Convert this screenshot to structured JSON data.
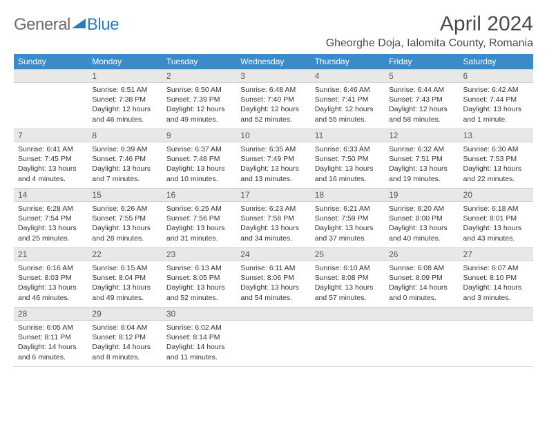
{
  "logo": {
    "text1": "General",
    "text2": "Blue",
    "icon_color": "#2b7bbf",
    "text1_color": "#6b6b6b",
    "text2_color": "#2b7bbf"
  },
  "title": "April 2024",
  "location": "Gheorghe Doja, Ialomita County, Romania",
  "colors": {
    "header_bg": "#3b8bc9",
    "header_fg": "#ffffff",
    "daynum_bg": "#e8e8e8",
    "border": "#d0d0d0",
    "text": "#333333"
  },
  "weekdays": [
    "Sunday",
    "Monday",
    "Tuesday",
    "Wednesday",
    "Thursday",
    "Friday",
    "Saturday"
  ],
  "start_offset": 1,
  "days": [
    {
      "n": 1,
      "sr": "6:51 AM",
      "ss": "7:38 PM",
      "dl": "12 hours and 46 minutes."
    },
    {
      "n": 2,
      "sr": "6:50 AM",
      "ss": "7:39 PM",
      "dl": "12 hours and 49 minutes."
    },
    {
      "n": 3,
      "sr": "6:48 AM",
      "ss": "7:40 PM",
      "dl": "12 hours and 52 minutes."
    },
    {
      "n": 4,
      "sr": "6:46 AM",
      "ss": "7:41 PM",
      "dl": "12 hours and 55 minutes."
    },
    {
      "n": 5,
      "sr": "6:44 AM",
      "ss": "7:43 PM",
      "dl": "12 hours and 58 minutes."
    },
    {
      "n": 6,
      "sr": "6:42 AM",
      "ss": "7:44 PM",
      "dl": "13 hours and 1 minute."
    },
    {
      "n": 7,
      "sr": "6:41 AM",
      "ss": "7:45 PM",
      "dl": "13 hours and 4 minutes."
    },
    {
      "n": 8,
      "sr": "6:39 AM",
      "ss": "7:46 PM",
      "dl": "13 hours and 7 minutes."
    },
    {
      "n": 9,
      "sr": "6:37 AM",
      "ss": "7:48 PM",
      "dl": "13 hours and 10 minutes."
    },
    {
      "n": 10,
      "sr": "6:35 AM",
      "ss": "7:49 PM",
      "dl": "13 hours and 13 minutes."
    },
    {
      "n": 11,
      "sr": "6:33 AM",
      "ss": "7:50 PM",
      "dl": "13 hours and 16 minutes."
    },
    {
      "n": 12,
      "sr": "6:32 AM",
      "ss": "7:51 PM",
      "dl": "13 hours and 19 minutes."
    },
    {
      "n": 13,
      "sr": "6:30 AM",
      "ss": "7:53 PM",
      "dl": "13 hours and 22 minutes."
    },
    {
      "n": 14,
      "sr": "6:28 AM",
      "ss": "7:54 PM",
      "dl": "13 hours and 25 minutes."
    },
    {
      "n": 15,
      "sr": "6:26 AM",
      "ss": "7:55 PM",
      "dl": "13 hours and 28 minutes."
    },
    {
      "n": 16,
      "sr": "6:25 AM",
      "ss": "7:56 PM",
      "dl": "13 hours and 31 minutes."
    },
    {
      "n": 17,
      "sr": "6:23 AM",
      "ss": "7:58 PM",
      "dl": "13 hours and 34 minutes."
    },
    {
      "n": 18,
      "sr": "6:21 AM",
      "ss": "7:59 PM",
      "dl": "13 hours and 37 minutes."
    },
    {
      "n": 19,
      "sr": "6:20 AM",
      "ss": "8:00 PM",
      "dl": "13 hours and 40 minutes."
    },
    {
      "n": 20,
      "sr": "6:18 AM",
      "ss": "8:01 PM",
      "dl": "13 hours and 43 minutes."
    },
    {
      "n": 21,
      "sr": "6:16 AM",
      "ss": "8:03 PM",
      "dl": "13 hours and 46 minutes."
    },
    {
      "n": 22,
      "sr": "6:15 AM",
      "ss": "8:04 PM",
      "dl": "13 hours and 49 minutes."
    },
    {
      "n": 23,
      "sr": "6:13 AM",
      "ss": "8:05 PM",
      "dl": "13 hours and 52 minutes."
    },
    {
      "n": 24,
      "sr": "6:11 AM",
      "ss": "8:06 PM",
      "dl": "13 hours and 54 minutes."
    },
    {
      "n": 25,
      "sr": "6:10 AM",
      "ss": "8:08 PM",
      "dl": "13 hours and 57 minutes."
    },
    {
      "n": 26,
      "sr": "6:08 AM",
      "ss": "8:09 PM",
      "dl": "14 hours and 0 minutes."
    },
    {
      "n": 27,
      "sr": "6:07 AM",
      "ss": "8:10 PM",
      "dl": "14 hours and 3 minutes."
    },
    {
      "n": 28,
      "sr": "6:05 AM",
      "ss": "8:11 PM",
      "dl": "14 hours and 6 minutes."
    },
    {
      "n": 29,
      "sr": "6:04 AM",
      "ss": "8:12 PM",
      "dl": "14 hours and 8 minutes."
    },
    {
      "n": 30,
      "sr": "6:02 AM",
      "ss": "8:14 PM",
      "dl": "14 hours and 11 minutes."
    }
  ],
  "labels": {
    "sunrise": "Sunrise:",
    "sunset": "Sunset:",
    "daylight": "Daylight:"
  }
}
